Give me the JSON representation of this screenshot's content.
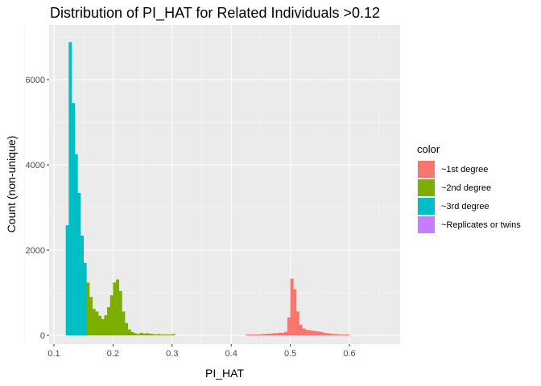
{
  "chart_data": {
    "type": "histogram",
    "title": "Distribution of PI_HAT for Related Individuals >0.12",
    "xlabel": "PI_HAT",
    "ylabel": "Count (non-unique)",
    "xlim": [
      0.1,
      0.6
    ],
    "ylim": [
      0,
      6000
    ],
    "x_ticks": [
      0.1,
      0.2,
      0.3,
      0.4,
      0.5,
      0.6
    ],
    "x_tick_labels": [
      "0.1",
      "0.2",
      "0.3",
      "0.4",
      "0.5",
      "0.6"
    ],
    "y_ticks": [
      0,
      2000,
      4000,
      6000
    ],
    "y_tick_labels": [
      "0",
      "2000",
      "4000",
      "6000"
    ],
    "grid": true,
    "legend": {
      "title": "color",
      "position": "right",
      "entries": [
        {
          "label": "~1st degree",
          "color": "#F8766D"
        },
        {
          "label": "~2nd degree",
          "color": "#7CAE00"
        },
        {
          "label": "~3rd degree",
          "color": "#00BFC4"
        },
        {
          "label": "~Replicates or twins",
          "color": "#C77CFF"
        }
      ]
    },
    "series": [
      {
        "name": "~3rd degree",
        "color": "#00BFC4",
        "bins": [
          {
            "x0": 0.12,
            "x1": 0.125,
            "count": 2580
          },
          {
            "x0": 0.125,
            "x1": 0.13,
            "count": 6880
          },
          {
            "x0": 0.13,
            "x1": 0.135,
            "count": 5450
          },
          {
            "x0": 0.135,
            "x1": 0.14,
            "count": 4250
          },
          {
            "x0": 0.14,
            "x1": 0.145,
            "count": 3340
          },
          {
            "x0": 0.145,
            "x1": 0.15,
            "count": 2340
          },
          {
            "x0": 0.15,
            "x1": 0.155,
            "count": 1700
          }
        ]
      },
      {
        "name": "~2nd degree",
        "color": "#7CAE00",
        "bins": [
          {
            "x0": 0.155,
            "x1": 0.16,
            "count": 1240
          },
          {
            "x0": 0.16,
            "x1": 0.165,
            "count": 900
          },
          {
            "x0": 0.165,
            "x1": 0.17,
            "count": 620
          },
          {
            "x0": 0.17,
            "x1": 0.175,
            "count": 560
          },
          {
            "x0": 0.175,
            "x1": 0.18,
            "count": 460
          },
          {
            "x0": 0.18,
            "x1": 0.185,
            "count": 380
          },
          {
            "x0": 0.185,
            "x1": 0.19,
            "count": 470
          },
          {
            "x0": 0.19,
            "x1": 0.195,
            "count": 660
          },
          {
            "x0": 0.195,
            "x1": 0.2,
            "count": 940
          },
          {
            "x0": 0.2,
            "x1": 0.205,
            "count": 1240
          },
          {
            "x0": 0.205,
            "x1": 0.21,
            "count": 1310
          },
          {
            "x0": 0.21,
            "x1": 0.215,
            "count": 1040
          },
          {
            "x0": 0.215,
            "x1": 0.22,
            "count": 560
          },
          {
            "x0": 0.22,
            "x1": 0.225,
            "count": 290
          },
          {
            "x0": 0.225,
            "x1": 0.23,
            "count": 140
          },
          {
            "x0": 0.23,
            "x1": 0.235,
            "count": 80
          },
          {
            "x0": 0.235,
            "x1": 0.24,
            "count": 50
          },
          {
            "x0": 0.24,
            "x1": 0.245,
            "count": 30
          },
          {
            "x0": 0.245,
            "x1": 0.25,
            "count": 60
          },
          {
            "x0": 0.25,
            "x1": 0.255,
            "count": 40
          },
          {
            "x0": 0.255,
            "x1": 0.26,
            "count": 50
          },
          {
            "x0": 0.26,
            "x1": 0.265,
            "count": 40
          },
          {
            "x0": 0.265,
            "x1": 0.27,
            "count": 30
          },
          {
            "x0": 0.27,
            "x1": 0.275,
            "count": 20
          },
          {
            "x0": 0.275,
            "x1": 0.28,
            "count": 30
          },
          {
            "x0": 0.28,
            "x1": 0.285,
            "count": 20
          },
          {
            "x0": 0.285,
            "x1": 0.29,
            "count": 20
          },
          {
            "x0": 0.29,
            "x1": 0.295,
            "count": 20
          },
          {
            "x0": 0.295,
            "x1": 0.3,
            "count": 20
          },
          {
            "x0": 0.3,
            "x1": 0.305,
            "count": 30
          }
        ]
      },
      {
        "name": "~1st degree",
        "color": "#F8766D",
        "bins": [
          {
            "x0": 0.425,
            "x1": 0.43,
            "count": 20
          },
          {
            "x0": 0.43,
            "x1": 0.435,
            "count": 20
          },
          {
            "x0": 0.435,
            "x1": 0.44,
            "count": 20
          },
          {
            "x0": 0.44,
            "x1": 0.445,
            "count": 20
          },
          {
            "x0": 0.445,
            "x1": 0.45,
            "count": 20
          },
          {
            "x0": 0.45,
            "x1": 0.455,
            "count": 30
          },
          {
            "x0": 0.455,
            "x1": 0.46,
            "count": 30
          },
          {
            "x0": 0.46,
            "x1": 0.465,
            "count": 40
          },
          {
            "x0": 0.465,
            "x1": 0.47,
            "count": 40
          },
          {
            "x0": 0.47,
            "x1": 0.475,
            "count": 50
          },
          {
            "x0": 0.475,
            "x1": 0.48,
            "count": 50
          },
          {
            "x0": 0.48,
            "x1": 0.485,
            "count": 60
          },
          {
            "x0": 0.485,
            "x1": 0.49,
            "count": 60
          },
          {
            "x0": 0.49,
            "x1": 0.495,
            "count": 80
          },
          {
            "x0": 0.495,
            "x1": 0.5,
            "count": 420
          },
          {
            "x0": 0.5,
            "x1": 0.505,
            "count": 1330
          },
          {
            "x0": 0.505,
            "x1": 0.51,
            "count": 1080
          },
          {
            "x0": 0.51,
            "x1": 0.515,
            "count": 560
          },
          {
            "x0": 0.515,
            "x1": 0.52,
            "count": 250
          },
          {
            "x0": 0.52,
            "x1": 0.525,
            "count": 160
          },
          {
            "x0": 0.525,
            "x1": 0.53,
            "count": 130
          },
          {
            "x0": 0.53,
            "x1": 0.535,
            "count": 120
          },
          {
            "x0": 0.535,
            "x1": 0.54,
            "count": 110
          },
          {
            "x0": 0.54,
            "x1": 0.545,
            "count": 100
          },
          {
            "x0": 0.545,
            "x1": 0.55,
            "count": 90
          },
          {
            "x0": 0.55,
            "x1": 0.555,
            "count": 80
          },
          {
            "x0": 0.555,
            "x1": 0.56,
            "count": 60
          },
          {
            "x0": 0.56,
            "x1": 0.565,
            "count": 50
          },
          {
            "x0": 0.565,
            "x1": 0.57,
            "count": 40
          },
          {
            "x0": 0.57,
            "x1": 0.575,
            "count": 30
          },
          {
            "x0": 0.575,
            "x1": 0.58,
            "count": 30
          },
          {
            "x0": 0.58,
            "x1": 0.585,
            "count": 20
          },
          {
            "x0": 0.585,
            "x1": 0.59,
            "count": 20
          },
          {
            "x0": 0.59,
            "x1": 0.595,
            "count": 20
          },
          {
            "x0": 0.595,
            "x1": 0.6,
            "count": 20
          }
        ]
      }
    ]
  }
}
